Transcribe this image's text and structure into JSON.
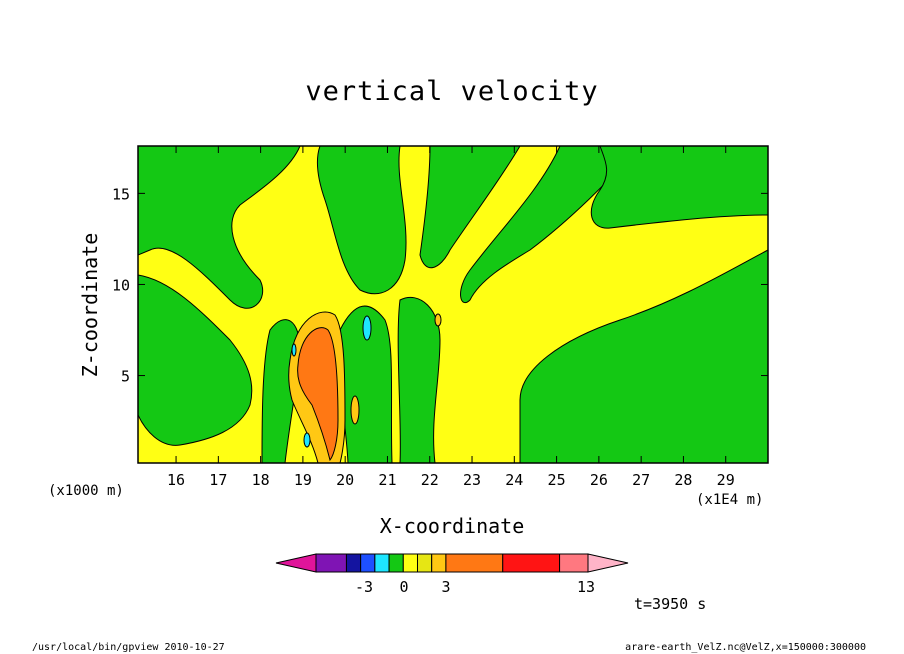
{
  "chart_data": {
    "type": "heatmap",
    "title": "vertical velocity",
    "xlabel": "X-coordinate",
    "ylabel": "Z-coordinate",
    "x_unit_label": "(x1E4 m)",
    "y_unit_label": "(x1000 m)",
    "x_ticks": [
      "16",
      "17",
      "18",
      "19",
      "20",
      "21",
      "22",
      "23",
      "24",
      "25",
      "26",
      "27",
      "28",
      "29"
    ],
    "y_ticks": [
      "5",
      "10",
      "15"
    ],
    "xlim": [
      15.1,
      30.0
    ],
    "ylim": [
      0.2,
      17.6
    ],
    "colorbar": {
      "colors": [
        "#e0149a",
        "#7f14b4",
        "#1414a0",
        "#1e50ff",
        "#1ee6ff",
        "#14c814",
        "#ffff14",
        "#e6e614",
        "#ffc814",
        "#ff7814",
        "#ff1414",
        "#ff7880",
        "#ffb4c8"
      ],
      "tick_labels": [
        "-3",
        "0",
        "3",
        "13"
      ]
    },
    "field": {
      "dominant_values": [
        "near zero (yellow/green bands)"
      ],
      "updraft_core": {
        "x_center": 19.6,
        "z_range": [
          0.5,
          8.5
        ],
        "max_level": "orange"
      },
      "downdraft_spots": [
        {
          "x": 20.5,
          "z": 7.5
        },
        {
          "x": 19.1,
          "z": 1.2
        },
        {
          "x": 19.0,
          "z": 6.5
        }
      ]
    }
  },
  "annotations": {
    "time": "t=3950 s",
    "footer_left": "/usr/local/bin/gpview  2010-10-27",
    "footer_right": "arare-earth_VelZ.nc@VelZ,x=150000:300000"
  }
}
